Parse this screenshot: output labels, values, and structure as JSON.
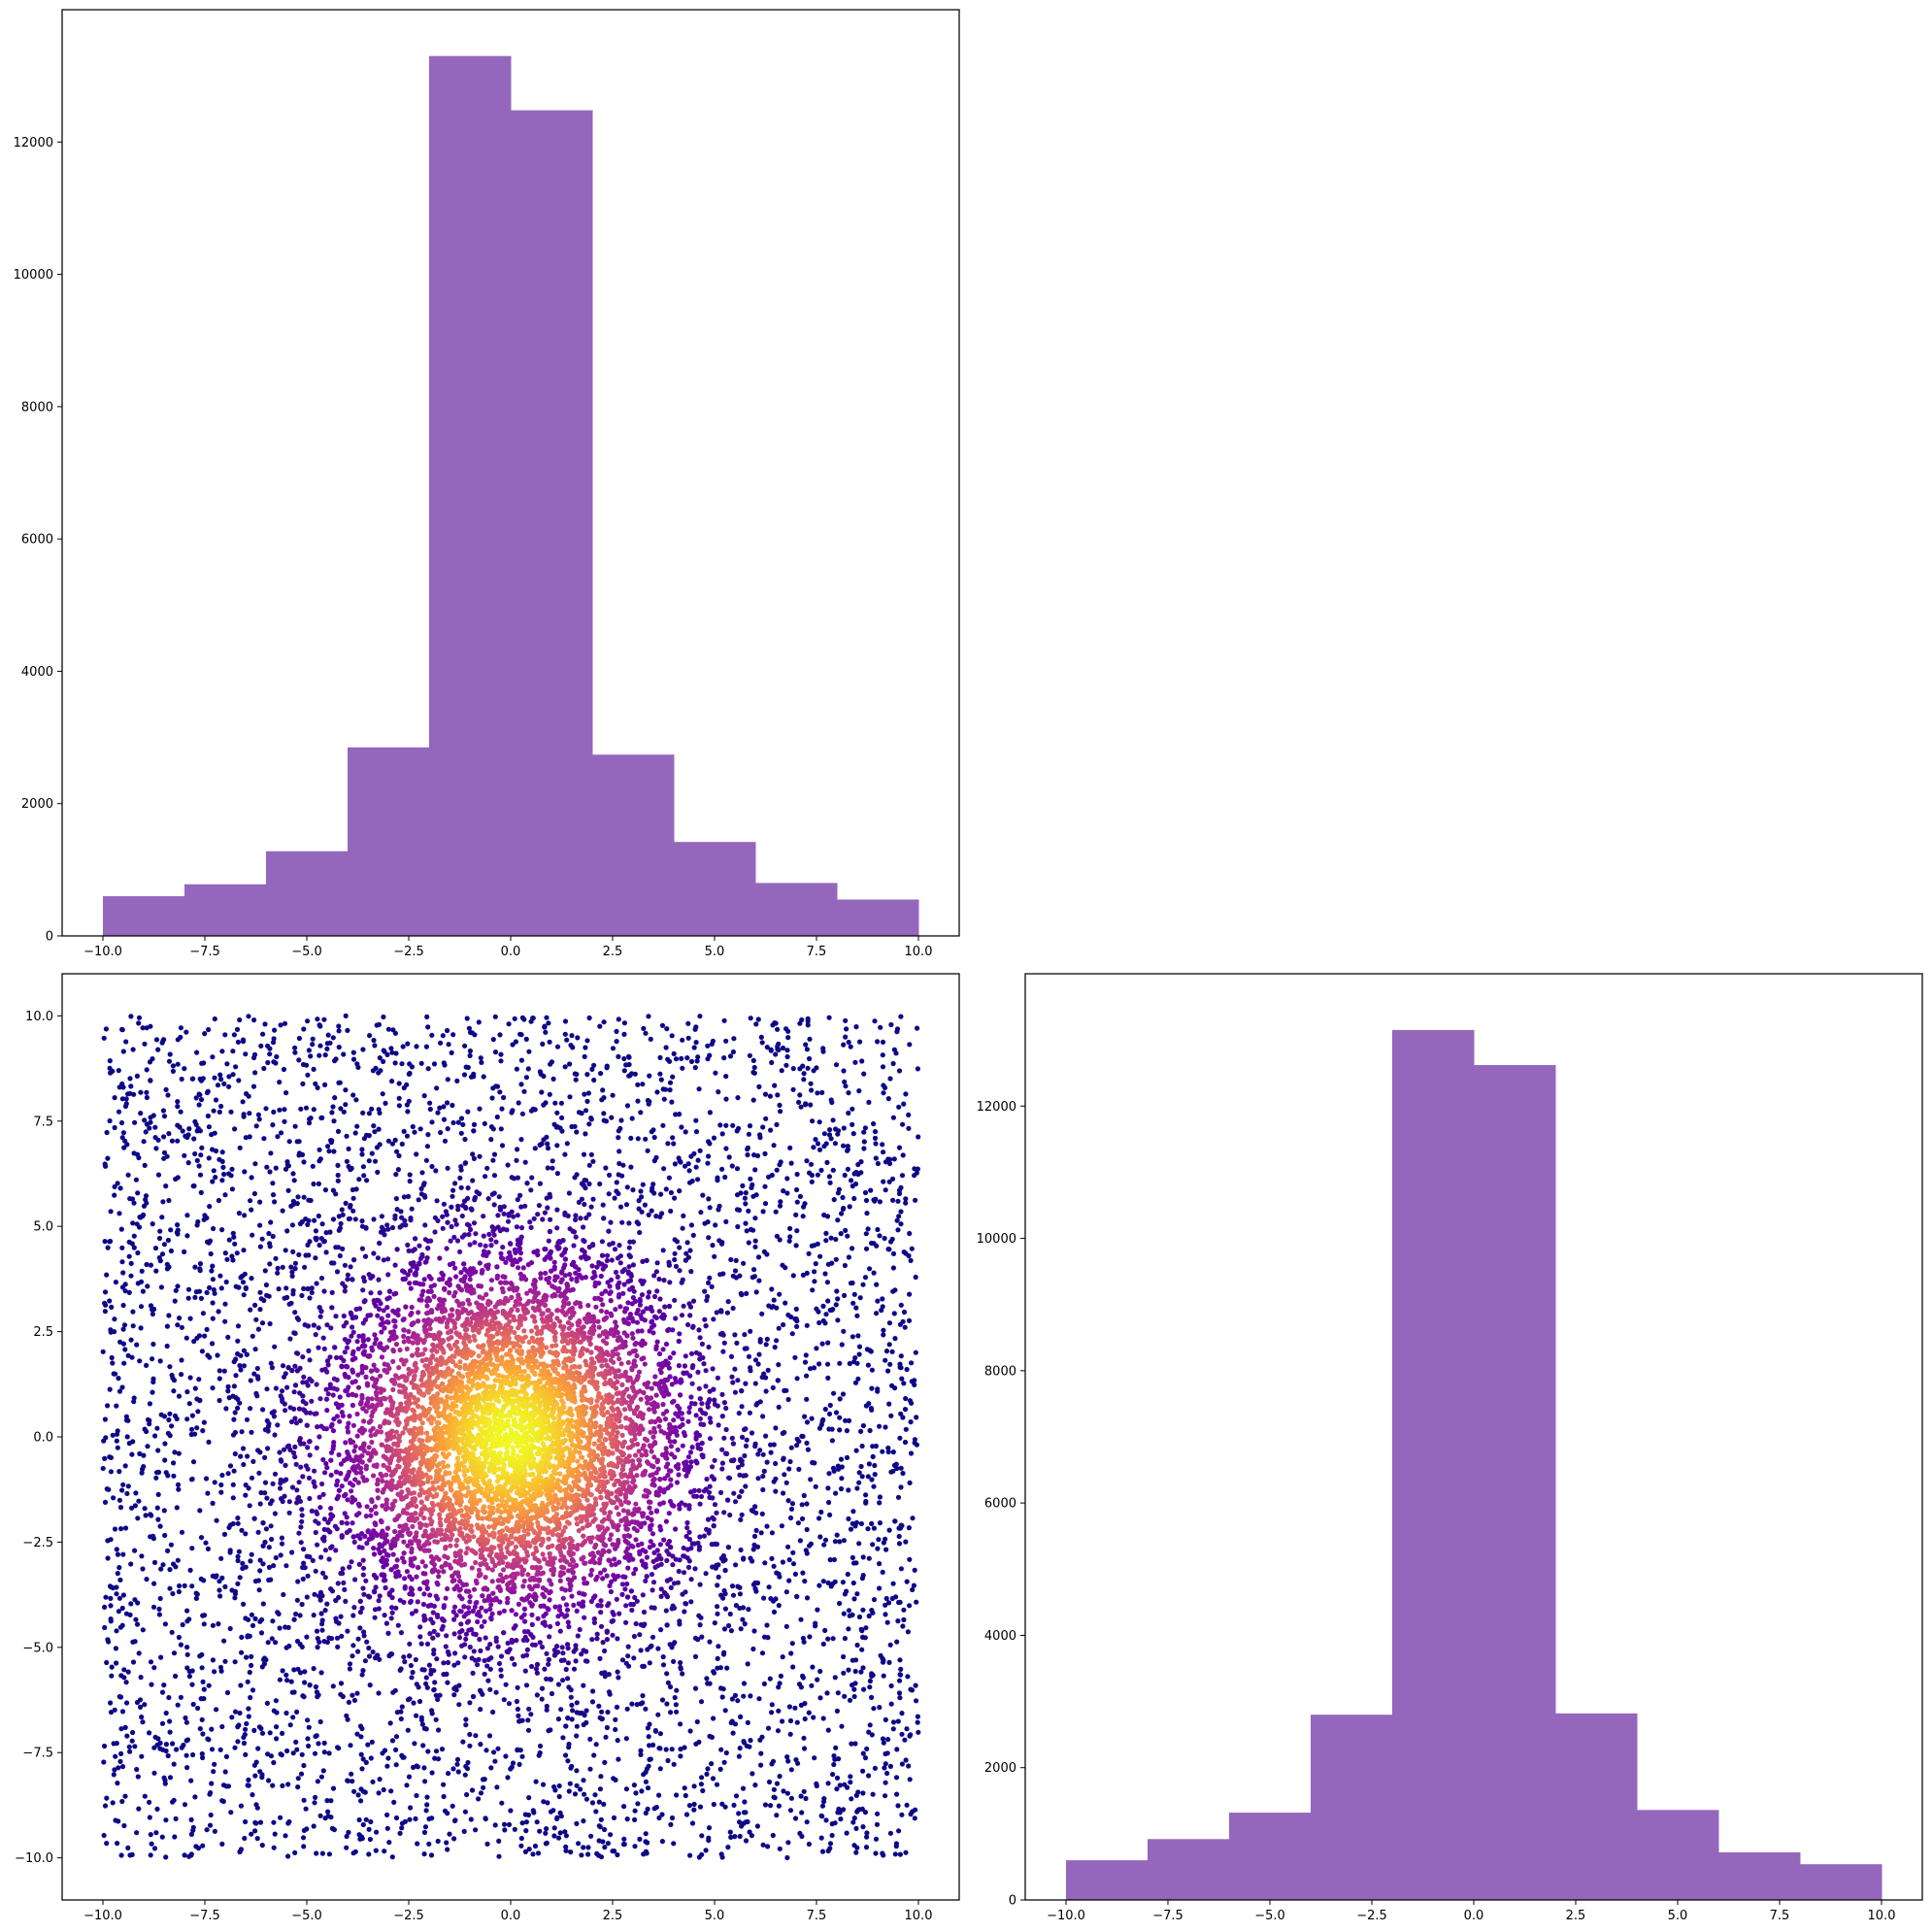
{
  "chart_data": [
    {
      "type": "bar",
      "panel": "top-left",
      "bin_edges": [
        -10,
        -8,
        -6,
        -4,
        -2,
        0,
        2,
        4,
        6,
        8,
        10
      ],
      "values": [
        600,
        780,
        1280,
        2850,
        13300,
        12480,
        2740,
        1420,
        800,
        550
      ],
      "xlim": [
        -11,
        11
      ],
      "ylim": [
        0,
        14000
      ],
      "xticks": [
        -10.0,
        -7.5,
        -5.0,
        -2.5,
        0.0,
        2.5,
        5.0,
        7.5,
        10.0
      ],
      "xtick_labels": [
        "−10.0",
        "−7.5",
        "−5.0",
        "−2.5",
        "0.0",
        "2.5",
        "5.0",
        "7.5",
        "10.0"
      ],
      "yticks": [
        0,
        2000,
        4000,
        6000,
        8000,
        10000,
        12000
      ],
      "ytick_labels": [
        "0",
        "2000",
        "4000",
        "6000",
        "8000",
        "10000",
        "12000"
      ],
      "color": "#9467bd",
      "grid": false
    },
    {
      "type": "scatter",
      "panel": "bottom-left",
      "description": "uniform points over [-10,10]x[-10,10] plus a dense center cluster; color by radial density (plasma colormap)",
      "xlim": [
        -11,
        11
      ],
      "ylim": [
        -11,
        11
      ],
      "xticks": [
        -10.0,
        -7.5,
        -5.0,
        -2.5,
        0.0,
        2.5,
        5.0,
        7.5,
        10.0
      ],
      "xtick_labels": [
        "−10.0",
        "−7.5",
        "−5.0",
        "−2.5",
        "0.0",
        "2.5",
        "5.0",
        "7.5",
        "10.0"
      ],
      "yticks": [
        -10.0,
        -7.5,
        -5.0,
        -2.5,
        0.0,
        2.5,
        5.0,
        7.5,
        10.0
      ],
      "ytick_labels": [
        "−10.0",
        "−7.5",
        "−5.0",
        "−2.5",
        "0.0",
        "2.5",
        "5.0",
        "7.5",
        "10.0"
      ],
      "colormap": [
        "#0d0887",
        "#6a00a8",
        "#b12a90",
        "#e16462",
        "#fca636",
        "#f0f921"
      ],
      "grid": false
    },
    {
      "type": "bar",
      "panel": "bottom-right",
      "bin_edges": [
        -10,
        -8,
        -6,
        -4,
        -2,
        0,
        2,
        4,
        6,
        8,
        10
      ],
      "values": [
        600,
        920,
        1320,
        2800,
        13150,
        12620,
        2820,
        1360,
        720,
        540
      ],
      "xlim": [
        -11,
        11
      ],
      "ylim": [
        0,
        14000
      ],
      "xticks": [
        -10.0,
        -7.5,
        -5.0,
        -2.5,
        0.0,
        2.5,
        5.0,
        7.5,
        10.0
      ],
      "xtick_labels": [
        "−10.0",
        "−7.5",
        "−5.0",
        "−2.5",
        "0.0",
        "2.5",
        "5.0",
        "7.5",
        "10.0"
      ],
      "yticks": [
        0,
        2000,
        4000,
        6000,
        8000,
        10000,
        12000
      ],
      "ytick_labels": [
        "0",
        "2000",
        "4000",
        "6000",
        "8000",
        "10000",
        "12000"
      ],
      "color": "#9467bd",
      "grid": false
    }
  ]
}
